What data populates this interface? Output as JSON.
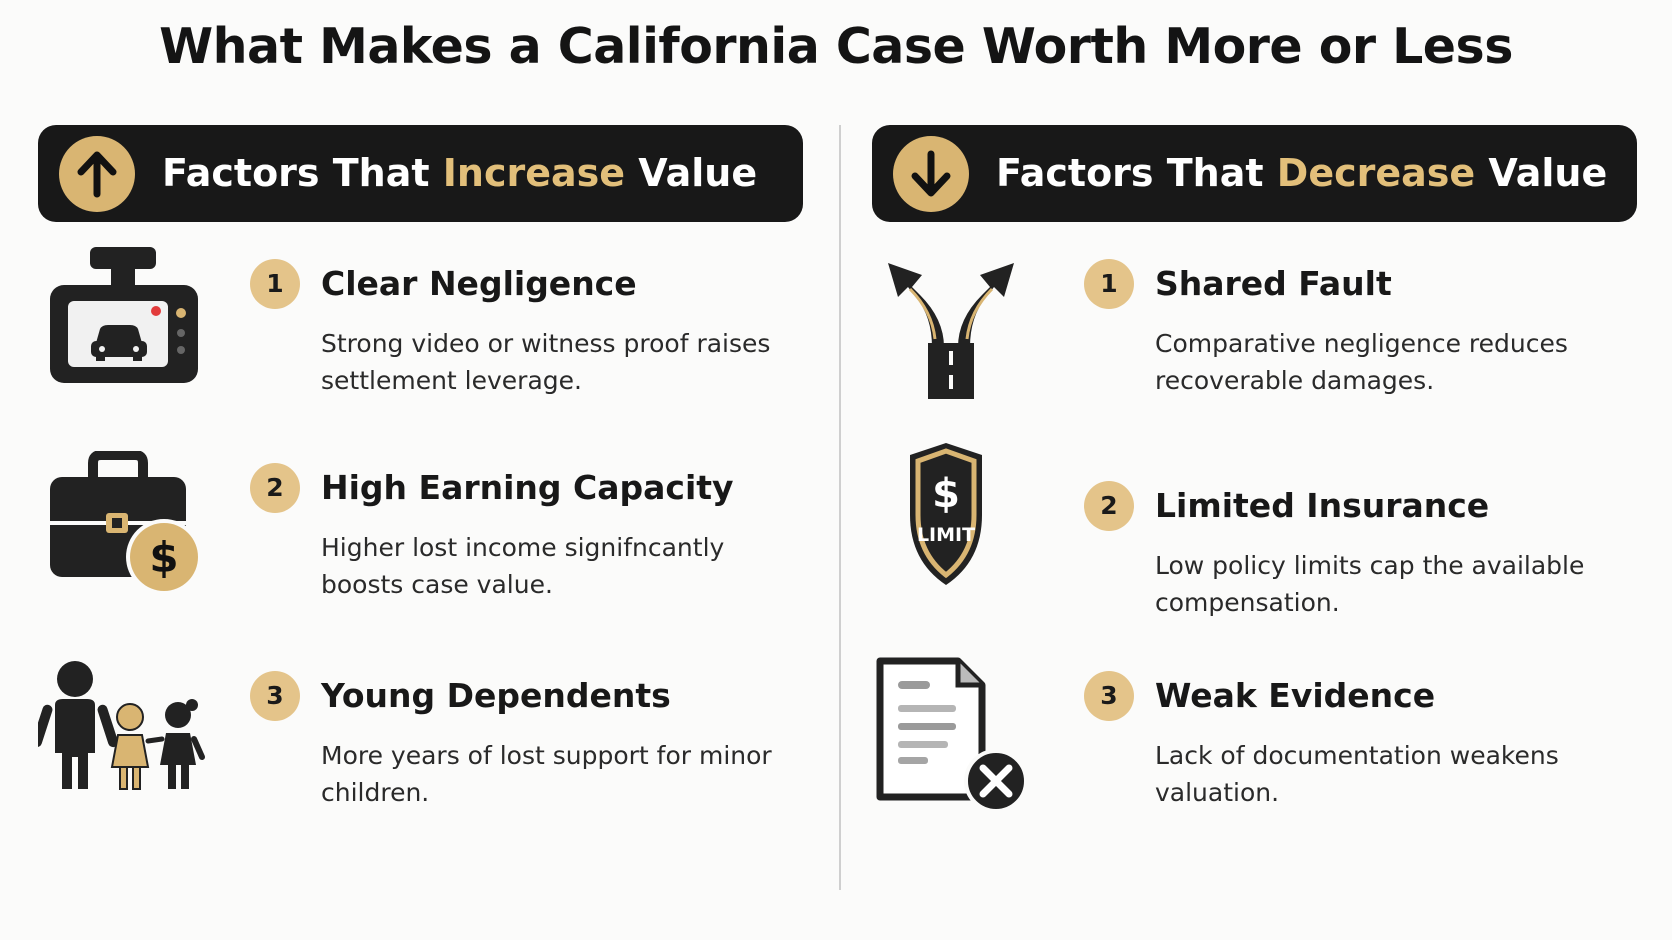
{
  "title": "What Makes a California Case Worth More or Less",
  "colors": {
    "accent": "#e2bf7a",
    "badge": "#e4c48a",
    "banner": "#181818"
  },
  "left": {
    "heading_pre": "Factors That ",
    "heading_accent": "Increase",
    "heading_post": " Value",
    "banner_icon": "arrow-up-icon",
    "items": [
      {
        "number": "1",
        "title": "Clear Negligence",
        "description": "Strong video or witness proof raises settlement leverage.",
        "icon": "dashcam-icon"
      },
      {
        "number": "2",
        "title": "High Earning Capacity",
        "description": "Higher lost income signifncantly boosts case value.",
        "icon": "briefcase-dollar-icon"
      },
      {
        "number": "3",
        "title": "Young Dependents",
        "description": "More years of lost support for minor children.",
        "icon": "family-icon"
      }
    ]
  },
  "right": {
    "heading_pre": "Factors That ",
    "heading_accent": "Decrease",
    "heading_post": " Value",
    "banner_icon": "arrow-down-icon",
    "items": [
      {
        "number": "1",
        "title": "Shared Fault",
        "description": "Comparative negligence reduces recoverable damages.",
        "icon": "split-road-icon"
      },
      {
        "number": "2",
        "title": "Limited Insurance",
        "description": "Low policy limits cap the available compensation.",
        "icon": "limit-shield-icon",
        "icon_text": "LIMIT"
      },
      {
        "number": "3",
        "title": "Weak Evidence",
        "description": "Lack of documentation weakens valuation.",
        "icon": "rejected-document-icon"
      }
    ]
  }
}
